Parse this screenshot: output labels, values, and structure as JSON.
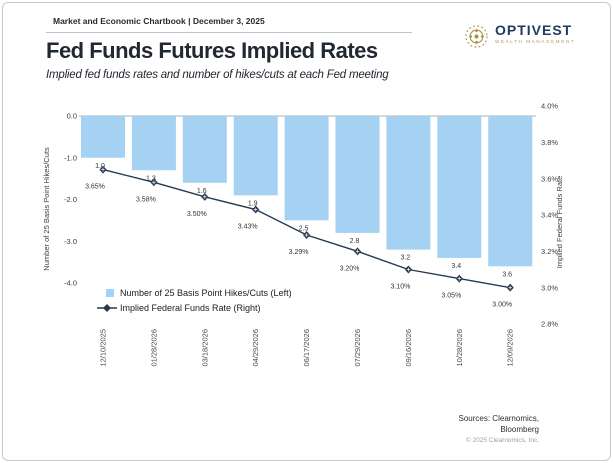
{
  "header": {
    "chartbook_label": "Market and Economic Chartbook",
    "separator": "|",
    "date": "December 3, 2025"
  },
  "logo": {
    "name": "OPTIVEST",
    "tagline": "WEALTH MANAGEMENT",
    "navy": "#1e3a5f",
    "gold": "#b09a56",
    "icon": "compass-rosette-icon"
  },
  "title": "Fed Funds Futures Implied Rates",
  "subtitle": "Implied fed funds rates and number of hikes/cuts at each Fed meeting",
  "chart_data": {
    "type": "bar+line",
    "title": "Fed Funds Futures Implied Rates",
    "categories": [
      "12/10/2025",
      "01/28/2026",
      "03/18/2026",
      "04/29/2026",
      "06/17/2026",
      "07/29/2026",
      "09/16/2026",
      "10/28/2026",
      "12/09/2026"
    ],
    "series": [
      {
        "name": "Number of 25 Basis Point Hikes/Cuts (Left)",
        "type": "bar",
        "axis": "left",
        "values": [
          -1.0,
          -1.3,
          -1.6,
          -1.9,
          -2.5,
          -2.8,
          -3.2,
          -3.4,
          -3.6
        ],
        "labels": [
          "1.0",
          "1.3",
          "1.6",
          "1.9",
          "2.5",
          "2.8",
          "3.2",
          "3.4",
          "3.6"
        ],
        "color": "#a5d2f2"
      },
      {
        "name": "Implied Federal Funds Rate (Right)",
        "type": "line",
        "axis": "right",
        "values": [
          3.65,
          3.58,
          3.5,
          3.43,
          3.29,
          3.2,
          3.1,
          3.05,
          3.0
        ],
        "labels": [
          "3.65%",
          "3.58%",
          "3.50%",
          "3.43%",
          "3.29%",
          "3.20%",
          "3.10%",
          "3.05%",
          "3.00%"
        ],
        "color": "#253a50",
        "marker": "diamond"
      }
    ],
    "left_axis": {
      "title": "Number of 25 Basis Point Hikes/Cuts",
      "tick_labels": [
        "0.0",
        "-1.0",
        "-2.0",
        "-3.0",
        "-4.0"
      ],
      "tick_values": [
        0,
        -1,
        -2,
        -3,
        -4
      ],
      "range": [
        0.3,
        -4.7
      ]
    },
    "right_axis": {
      "title": "Implied Federal Funds Rate",
      "tick_labels": [
        "4.0%",
        "3.8%",
        "3.6%",
        "3.4%",
        "3.2%",
        "3.0%",
        "2.8%"
      ],
      "tick_values": [
        4.0,
        3.8,
        3.6,
        3.4,
        3.2,
        3.0,
        2.8
      ],
      "range": [
        4.06,
        2.8
      ]
    },
    "grid": "single horizontal gridline at 0.0",
    "legend_position": "inside lower-left"
  },
  "footer": {
    "sources_line1": "Sources: Clearnomics,",
    "sources_line2": "Bloomberg",
    "copyright": "© 2025 Clearnomics, Inc."
  }
}
